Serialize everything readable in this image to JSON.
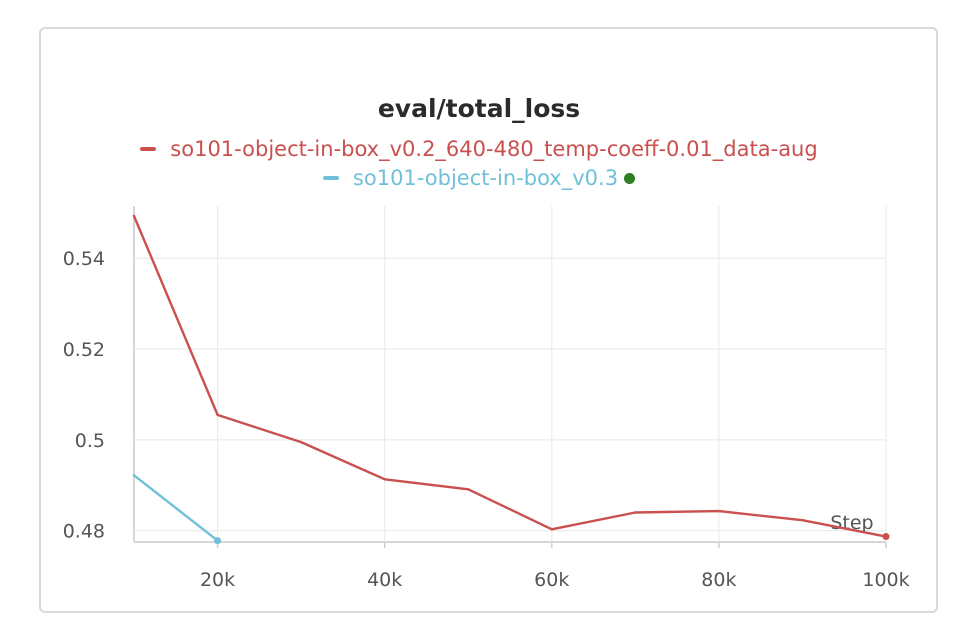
{
  "chart_data": {
    "type": "line",
    "title": "eval/total_loss",
    "xlabel": "Step",
    "ylabel": "",
    "xlim": [
      10000,
      100000
    ],
    "ylim": [
      0.4775,
      0.5515
    ],
    "x_ticks": [
      20000,
      40000,
      60000,
      80000,
      100000
    ],
    "x_tick_labels": [
      "20k",
      "40k",
      "60k",
      "80k",
      "100k"
    ],
    "y_ticks": [
      0.48,
      0.5,
      0.52,
      0.54
    ],
    "y_tick_labels": [
      "0.48",
      "0.5",
      "0.52",
      "0.54"
    ],
    "grid": true,
    "legend_position": "top-center",
    "series": [
      {
        "name": "so101-object-in-box_v0.2_640-480_temp-coeff-0.01_data-aug",
        "color": "#c9504e",
        "x": [
          10000,
          20000,
          30000,
          40000,
          50000,
          60000,
          70000,
          80000,
          90000,
          100000
        ],
        "y": [
          0.5493,
          0.5055,
          0.4995,
          0.4913,
          0.4891,
          0.4803,
          0.484,
          0.4843,
          0.4823,
          0.4787
        ]
      },
      {
        "name": "so101-object-in-box_v0.3",
        "color": "#71c0da",
        "status_color": "#2e7d1e",
        "x": [
          10000,
          20000
        ],
        "y": [
          0.4922,
          0.4778
        ]
      }
    ]
  }
}
